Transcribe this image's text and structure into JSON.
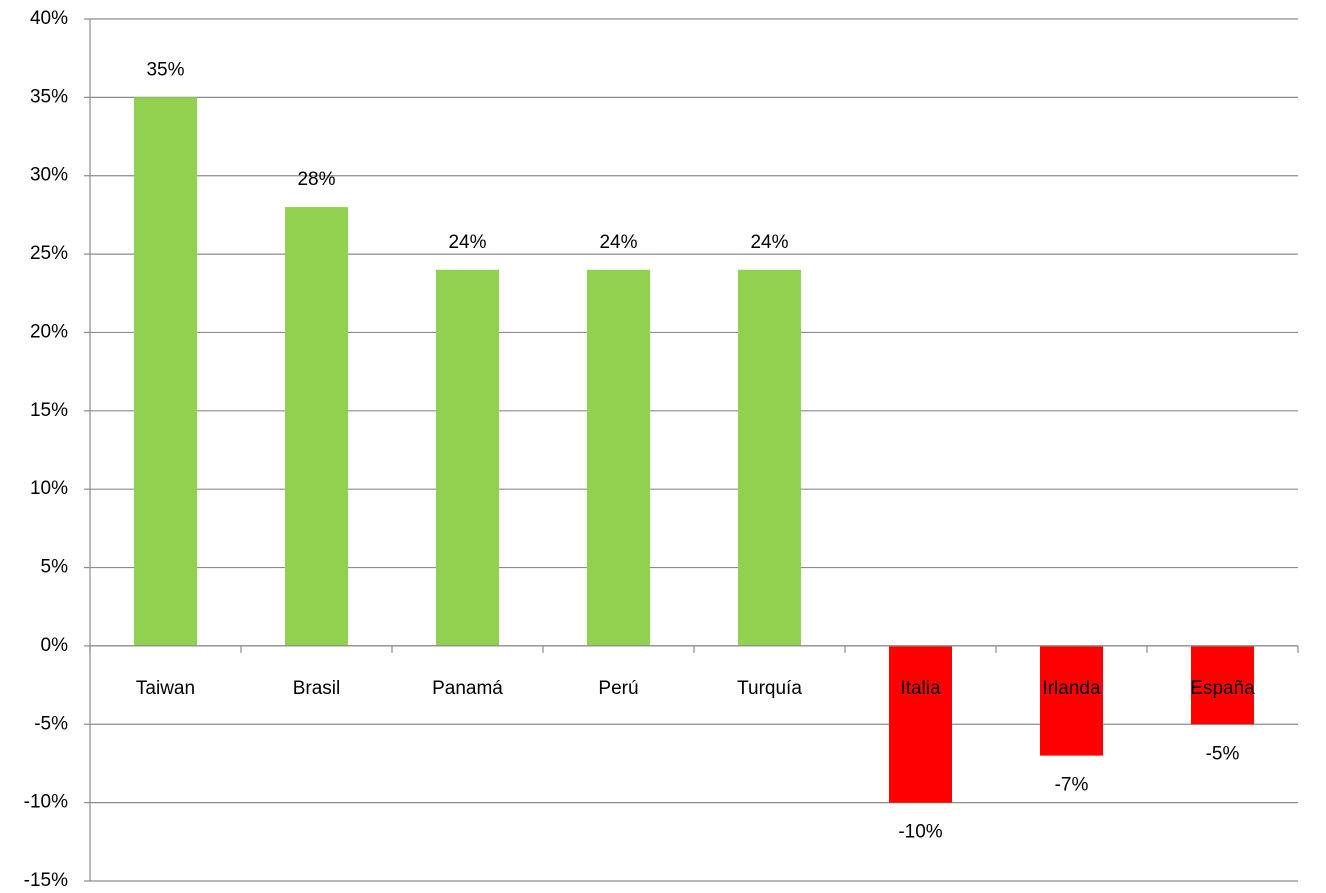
{
  "chart_data": {
    "type": "bar",
    "categories": [
      "Taiwan",
      "Brasil",
      "Panamá",
      "Perú",
      "Turquía",
      "Italia",
      "Irlanda",
      "España"
    ],
    "values": [
      35,
      28,
      24,
      24,
      24,
      -10,
      -7,
      -5
    ],
    "value_labels": [
      "35%",
      "28%",
      "24%",
      "24%",
      "24%",
      "-10%",
      "-7%",
      "-5%"
    ],
    "colors": [
      "#92d050",
      "#92d050",
      "#92d050",
      "#92d050",
      "#92d050",
      "#ff0000",
      "#ff0000",
      "#ff0000"
    ],
    "ylim": [
      -15,
      40
    ],
    "yticks": [
      {
        "value": -15,
        "label": "-15%"
      },
      {
        "value": -10,
        "label": "-10%"
      },
      {
        "value": -5,
        "label": "-5%"
      },
      {
        "value": 0,
        "label": "0%"
      },
      {
        "value": 5,
        "label": "5%"
      },
      {
        "value": 10,
        "label": "10%"
      },
      {
        "value": 15,
        "label": "15%"
      },
      {
        "value": 20,
        "label": "20%"
      },
      {
        "value": 25,
        "label": "25%"
      },
      {
        "value": 30,
        "label": "30%"
      },
      {
        "value": 35,
        "label": "35%"
      },
      {
        "value": 40,
        "label": "40%"
      }
    ],
    "grid": true
  }
}
